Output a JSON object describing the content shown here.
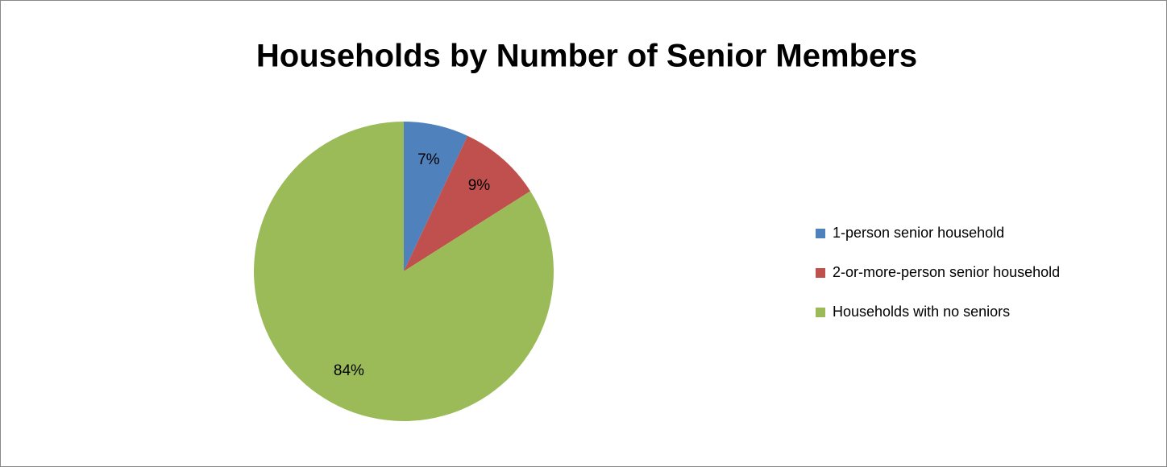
{
  "chart_data": {
    "type": "pie",
    "title": "Households by Number of Senior Members",
    "categories": [
      "1-person senior household",
      "2-or-more-person senior household",
      "Households with no seniors"
    ],
    "values": [
      7,
      9,
      84
    ],
    "value_labels": [
      "7%",
      "9%",
      "84%"
    ],
    "colors": [
      "#4f81bd",
      "#c0504d",
      "#9bbb59"
    ],
    "legend": "right"
  }
}
